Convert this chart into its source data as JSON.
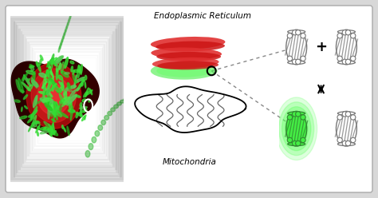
{
  "bg_color": "#d8d8d8",
  "panel_bg": "#ffffff",
  "label_er": "Endoplasmic Reticulum",
  "label_mito": "Mitochondria",
  "er_colors": [
    "#e83030",
    "#d42020",
    "#cc1818",
    "#e03838",
    "#c81010"
  ],
  "er_green_color": "#44ee44",
  "mito_outline": "#111111",
  "contact_circle_color": "#111111",
  "dashed_line_color": "#cccccc",
  "arrow_color": "#111111",
  "text_color": "#111111",
  "plus_symbol": "+",
  "equilibrium_symbol": "⇕"
}
